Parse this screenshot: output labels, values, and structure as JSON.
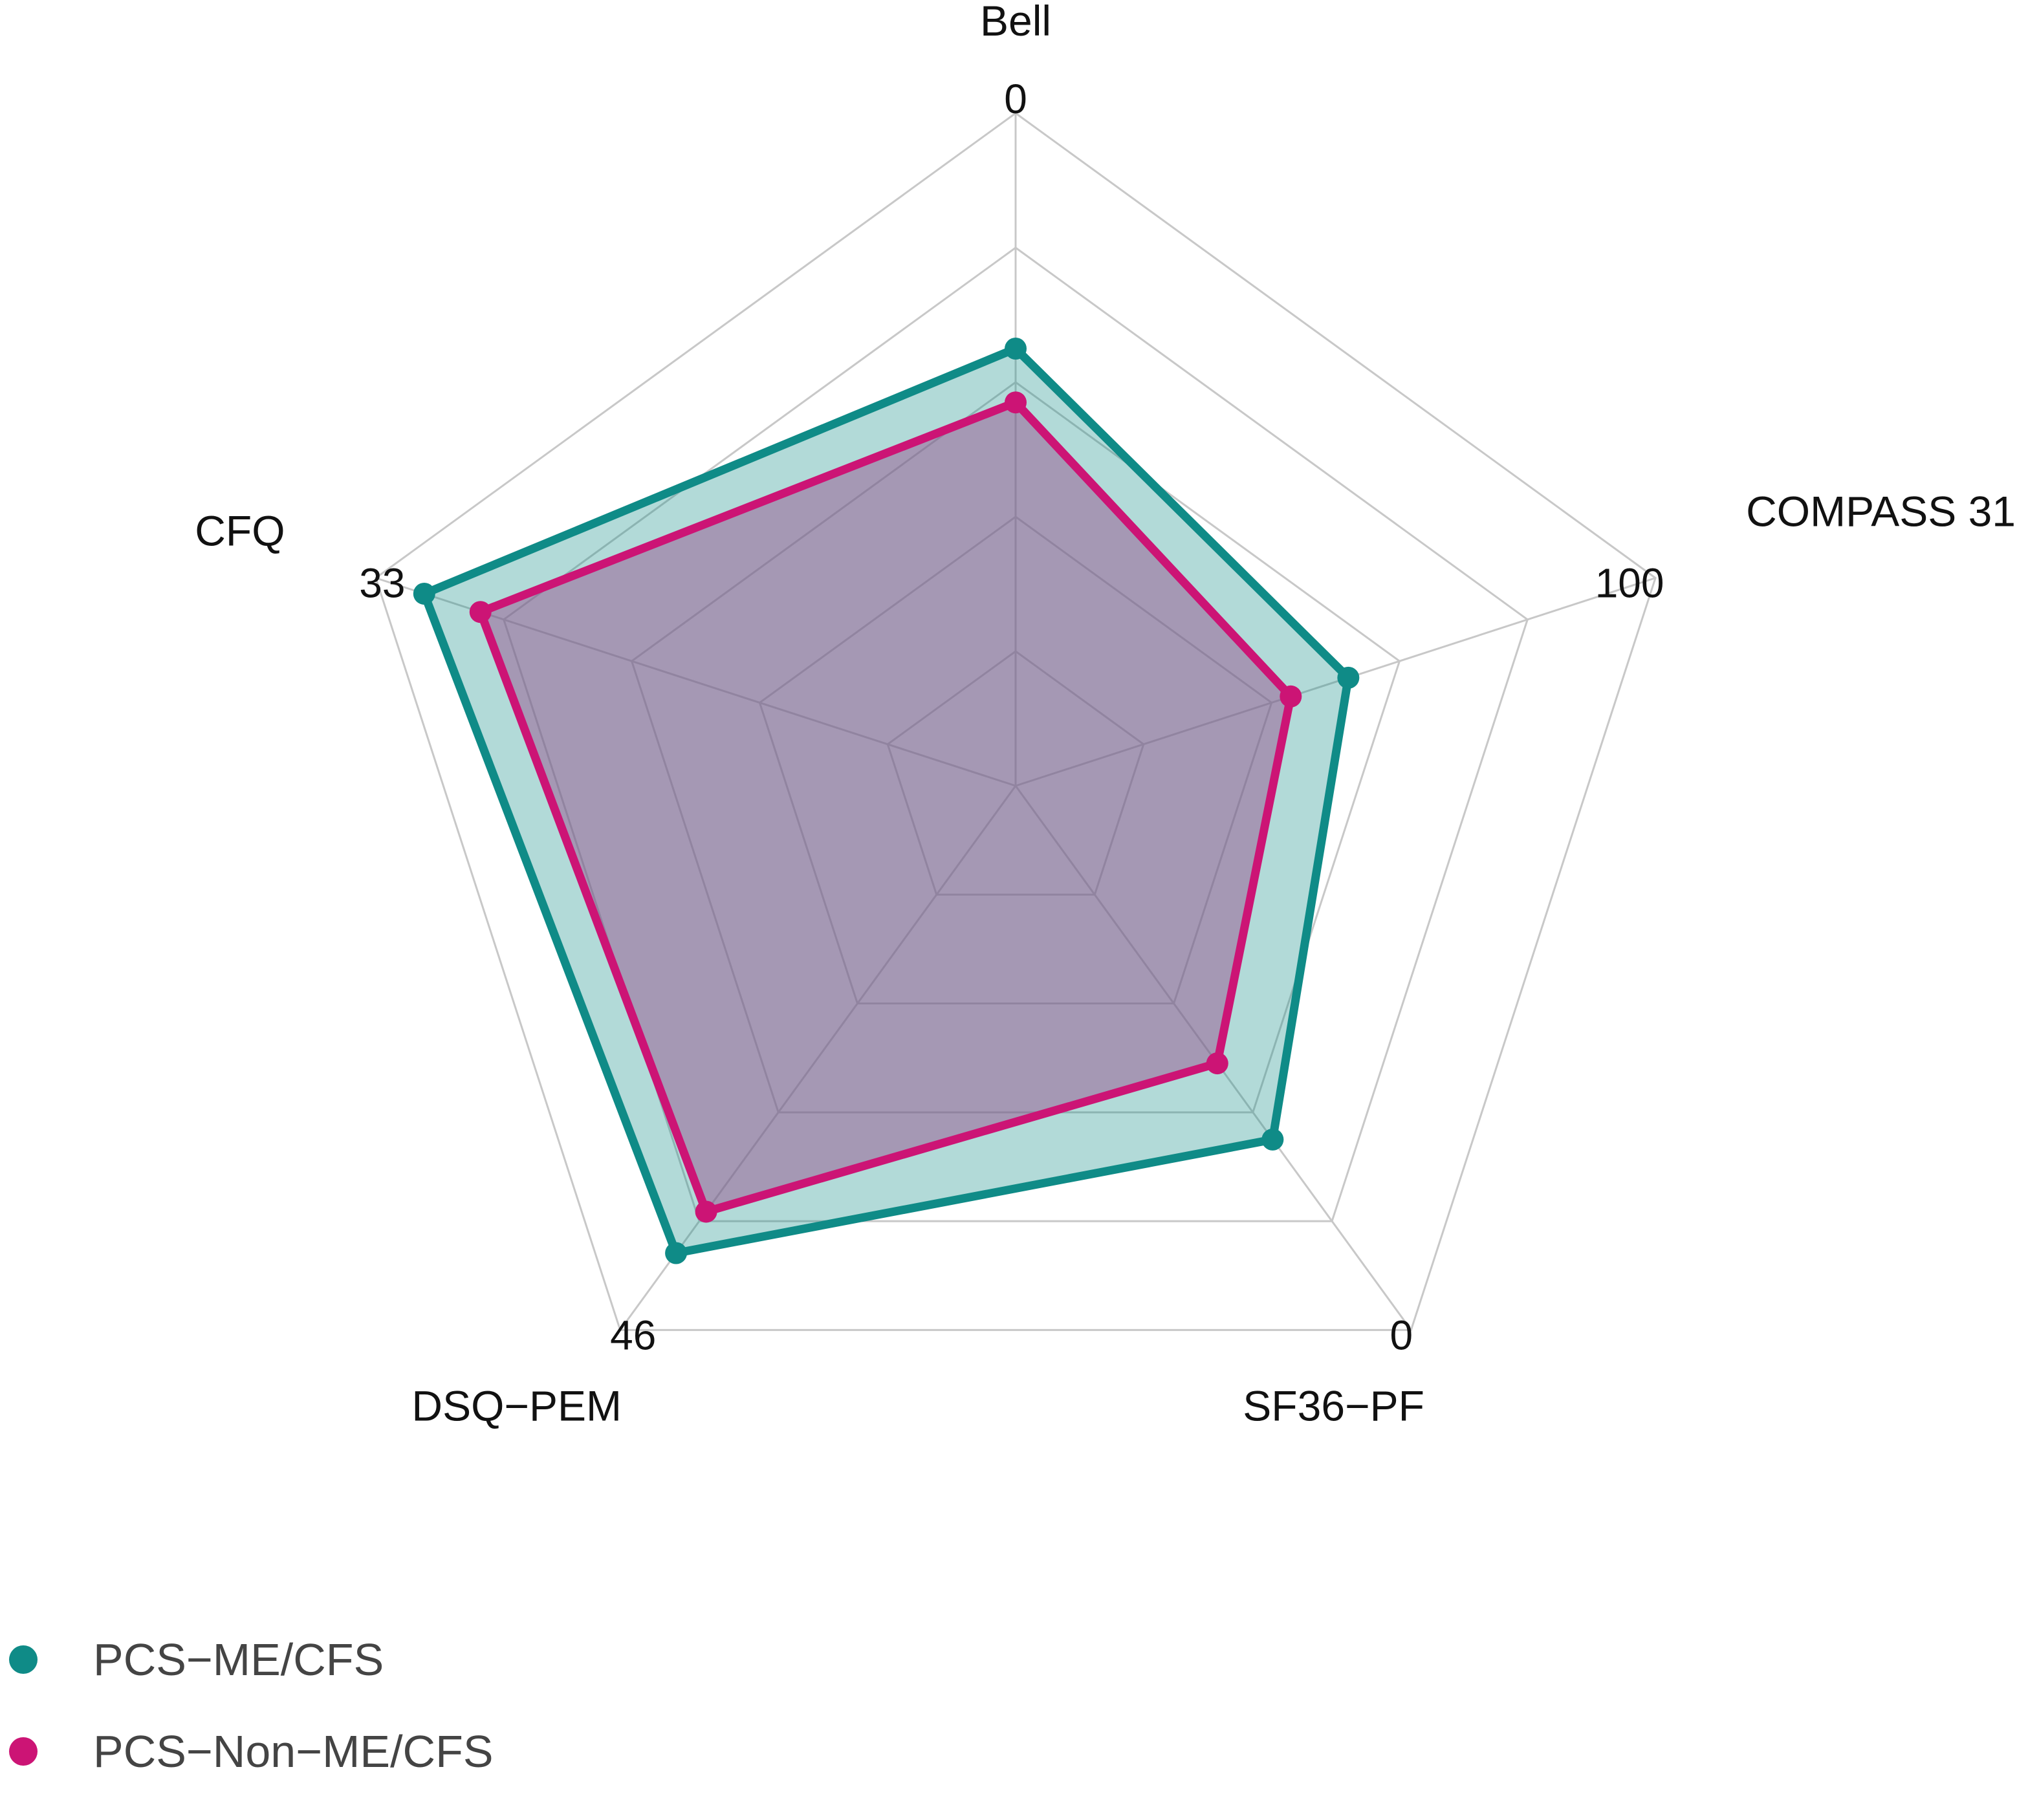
{
  "chart_data": {
    "type": "radar",
    "axes": [
      {
        "name": "Bell",
        "inner": 100,
        "outer": 0,
        "outer_label": "0"
      },
      {
        "name": "COMPASS 31",
        "inner": 0,
        "outer": 100,
        "outer_label": "100"
      },
      {
        "name": "SF36−PF",
        "inner": 100,
        "outer": 0,
        "outer_label": "0"
      },
      {
        "name": "DSQ−PEM",
        "inner": 0,
        "outer": 46,
        "outer_label": "46"
      },
      {
        "name": "CFQ",
        "inner": 0,
        "outer": 33,
        "outer_label": "33"
      }
    ],
    "grid_levels": 5,
    "series": [
      {
        "name": "PCS−ME/CFS",
        "color": "#0f8b87",
        "fill": "rgba(15,139,135,0.32)",
        "values": [
          35,
          52,
          35,
          39.5,
          30.5
        ]
      },
      {
        "name": "PCS−Non−ME/CFS",
        "color": "#cc1475",
        "fill": "rgba(150,80,140,0.48)",
        "values": [
          43,
          43,
          49,
          36,
          27.6
        ]
      }
    ],
    "legend_position": "bottom-left"
  }
}
